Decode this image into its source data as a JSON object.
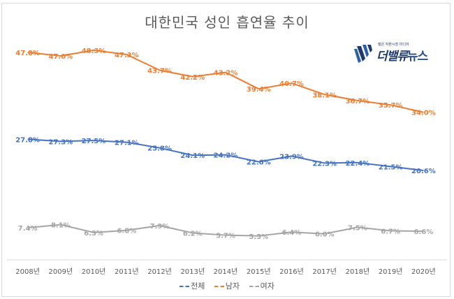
{
  "chart_data": {
    "type": "line",
    "title": "대한민국 성인 흡연율 추이",
    "xlabel": "",
    "ylabel": "",
    "categories": [
      "2008년",
      "2009년",
      "2010년",
      "2011년",
      "2012년",
      "2013년",
      "2014년",
      "2015년",
      "2016년",
      "2017년",
      "2018년",
      "2019년",
      "2020년"
    ],
    "series": [
      {
        "name": "전체",
        "color": "#4472c4",
        "values": [
          27.8,
          27.3,
          27.5,
          27.1,
          25.8,
          24.1,
          24.2,
          22.6,
          23.9,
          22.3,
          22.4,
          21.5,
          20.6
        ],
        "labels": [
          "27.8%",
          "27.3%",
          "27.5%",
          "27.1%",
          "25.8%",
          "24.1%",
          "24.2%",
          "22.6%",
          "23.9%",
          "22.3%",
          "22.4%",
          "21.5%",
          "20.6%"
        ]
      },
      {
        "name": "남자",
        "color": "#ed7d31",
        "values": [
          47.8,
          47.0,
          48.3,
          47.3,
          43.7,
          42.2,
          43.2,
          39.4,
          40.7,
          38.1,
          36.7,
          35.7,
          34.0
        ],
        "labels": [
          "47.8%",
          "47.0%",
          "48.3%",
          "47.3%",
          "43.7%",
          "42.2%",
          "43.2%",
          "39.4%",
          "40.7%",
          "38.1%",
          "36.7%",
          "35.7%",
          "34.0%"
        ]
      },
      {
        "name": "여자",
        "color": "#a5a5a5",
        "values": [
          7.4,
          8.1,
          6.3,
          6.8,
          7.9,
          6.2,
          5.7,
          5.5,
          6.4,
          6.0,
          7.5,
          6.7,
          6.6
        ],
        "labels": [
          "7.4%",
          "8.1%",
          "6.3%",
          "6.8%",
          "7.9%",
          "6.2%",
          "5.7%",
          "5.5%",
          "6.4%",
          "6.0%",
          "7.5%",
          "6.7%",
          "6.6%"
        ]
      }
    ],
    "ylim": [
      0,
      50
    ],
    "grid": false,
    "legend_position": "bottom",
    "data_labels": true
  },
  "logo": {
    "tagline": "젊은 자본시장 미디어",
    "name_part1": "더밸류",
    "name_part2": "뉴스"
  }
}
